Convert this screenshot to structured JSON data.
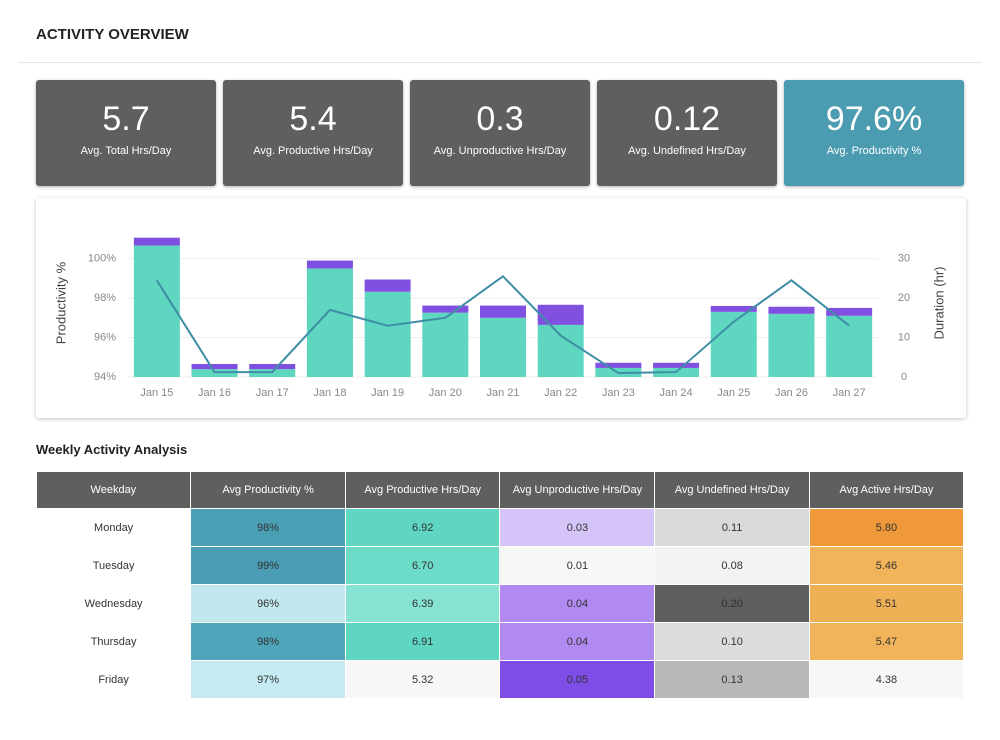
{
  "header": {
    "title": "ACTIVITY OVERVIEW"
  },
  "kpis": [
    {
      "value": "5.7",
      "label": "Avg. Total Hrs/Day",
      "color": "#5f5f5f"
    },
    {
      "value": "5.4",
      "label": "Avg. Productive Hrs/Day",
      "color": "#5f5f5f"
    },
    {
      "value": "0.3",
      "label": "Avg. Unproductive Hrs/Day",
      "color": "#5f5f5f"
    },
    {
      "value": "0.12",
      "label": "Avg. Undefined Hrs/Day",
      "color": "#5f5f5f"
    },
    {
      "value": "97.6%",
      "label": "Avg. Productivity %",
      "color": "#4b9bb1"
    }
  ],
  "chart_data": {
    "type": "bar",
    "stacked": true,
    "categories": [
      "Jan 15",
      "Jan 16",
      "Jan 17",
      "Jan 18",
      "Jan 19",
      "Jan 20",
      "Jan 21",
      "Jan 22",
      "Jan 23",
      "Jan 24",
      "Jan 25",
      "Jan 26",
      "Jan 27"
    ],
    "ylabel": "Productivity %",
    "y2label": "Duration (hr)",
    "ylim": [
      94,
      101.5
    ],
    "yticks": [
      {
        "value": 94,
        "label": "94%"
      },
      {
        "value": 96,
        "label": "96%"
      },
      {
        "value": 98,
        "label": "98%"
      },
      {
        "value": 100,
        "label": "100%"
      }
    ],
    "y2lim": [
      0,
      37.5
    ],
    "y2ticks": [
      0,
      10,
      20,
      30
    ],
    "grid": true,
    "series": [
      {
        "type": "bar",
        "axis": "y2",
        "color": "#5fd6c0",
        "values": [
          33.3,
          2.0,
          2.0,
          27.5,
          21.6,
          16.3,
          15.0,
          13.2,
          2.3,
          2.3,
          16.5,
          16.0,
          15.5
        ]
      },
      {
        "type": "bar",
        "axis": "y2",
        "color": "#8050e0",
        "values": [
          2.0,
          1.3,
          1.3,
          2.0,
          3.1,
          1.8,
          3.1,
          5.1,
          1.3,
          1.3,
          1.5,
          1.8,
          2.0
        ]
      },
      {
        "type": "line",
        "axis": "y",
        "color": "#3f8ea6",
        "values": [
          98.9,
          94.25,
          94.25,
          97.4,
          96.6,
          97.0,
          99.1,
          96.1,
          94.2,
          94.25,
          96.8,
          98.9,
          96.6
        ]
      }
    ]
  },
  "table": {
    "title": "Weekly Activity Analysis",
    "columns": [
      "Weekday",
      "Avg Productivity %",
      "Avg Productive Hrs/Day",
      "Avg Unproductive Hrs/Day",
      "Avg Undefined Hrs/Day",
      "Avg Active Hrs/Day"
    ],
    "rows": [
      [
        "Monday",
        "98%",
        "6.92",
        "0.03",
        "0.11",
        "5.80"
      ],
      [
        "Tuesday",
        "99%",
        "6.70",
        "0.01",
        "0.08",
        "5.46"
      ],
      [
        "Wednesday",
        "96%",
        "6.39",
        "0.04",
        "0.20",
        "5.51"
      ],
      [
        "Thursday",
        "98%",
        "6.91",
        "0.04",
        "0.10",
        "5.47"
      ],
      [
        "Friday",
        "97%",
        "5.32",
        "0.05",
        "0.13",
        "4.38"
      ]
    ],
    "cell_colors": [
      [
        "#ffffff",
        "#4a9fb5",
        "#5ed6c1",
        "#d4c4f8",
        "#d9d9d9",
        "#f0993a"
      ],
      [
        "#ffffff",
        "#4a9db4",
        "#6cdcc8",
        "#f7f7f7",
        "#f2f2f2",
        "#f2b45a"
      ],
      [
        "#ffffff",
        "#c2e8ef",
        "#86e3d3",
        "#b08af0",
        "#5e5e5e",
        "#f0b055"
      ],
      [
        "#ffffff",
        "#4fa6ba",
        "#5ed6c1",
        "#b08af0",
        "#dcdcdc",
        "#f2b45a"
      ],
      [
        "#ffffff",
        "#c5eaf1",
        "#f7f7f7",
        "#7d4de6",
        "#b8b8b8",
        "#f7f7f7"
      ]
    ]
  }
}
